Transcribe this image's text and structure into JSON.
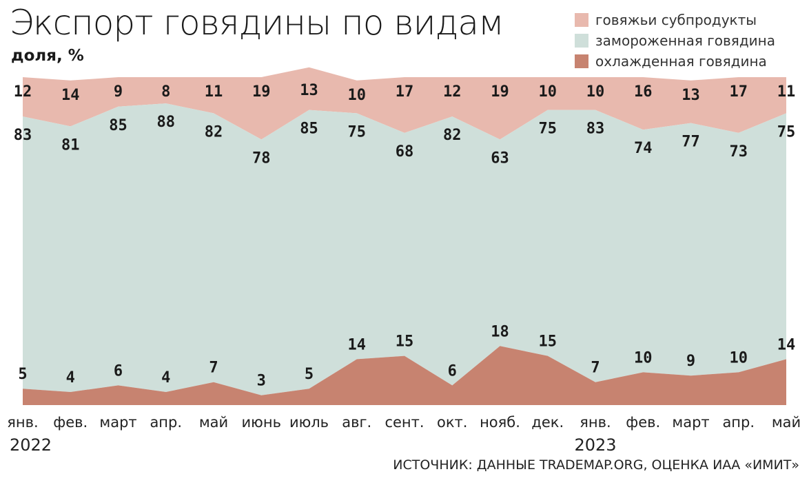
{
  "header": {
    "title": "Экспорт говядины по видам",
    "subtitle": "доля, %"
  },
  "legend": [
    {
      "label": "говяжьи субпродукты",
      "color": "#e8b9ae"
    },
    {
      "label": "замороженная говядина",
      "color": "#cfdfda"
    },
    {
      "label": "охлажденная говядина",
      "color": "#c78370"
    }
  ],
  "source": "ИСТОЧНИК: ДАННЫЕ TRADEMAP.ORG, ОЦЕНКА ИАА «ИМИТ»",
  "chart_data": {
    "type": "area",
    "stacked": true,
    "categories": [
      "янв.",
      "фев.",
      "март",
      "апр.",
      "май",
      "июнь",
      "июль",
      "авг.",
      "сент.",
      "окт.",
      "нояб.",
      "дек.",
      "янв.",
      "фев.",
      "март",
      "апр.",
      "май"
    ],
    "year_labels": [
      "2022",
      "2023"
    ],
    "series": [
      {
        "name": "охлажденная говядина",
        "color": "#c78370",
        "values": [
          5,
          4,
          6,
          4,
          7,
          3,
          5,
          14,
          15,
          6,
          18,
          15,
          7,
          10,
          9,
          10,
          14
        ]
      },
      {
        "name": "замороженная говядина",
        "color": "#cfdfda",
        "values": [
          83,
          81,
          85,
          88,
          82,
          78,
          85,
          75,
          68,
          82,
          63,
          75,
          83,
          74,
          77,
          73,
          75
        ]
      },
      {
        "name": "говяжьи субпродукты",
        "color": "#e8b9ae",
        "values": [
          12,
          14,
          9,
          8,
          11,
          19,
          13,
          10,
          17,
          12,
          19,
          10,
          10,
          16,
          13,
          17,
          11
        ]
      }
    ],
    "ylabel": "доля, %",
    "grid": false
  }
}
